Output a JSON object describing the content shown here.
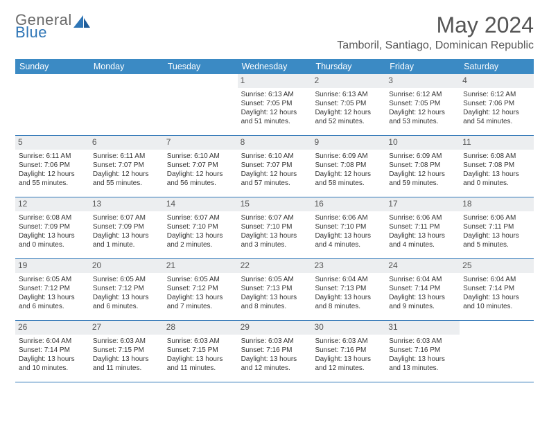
{
  "logo": {
    "part1": "General",
    "part2": "Blue"
  },
  "title": "May 2024",
  "location": "Tamboril, Santiago, Dominican Republic",
  "colors": {
    "header_bg": "#3b8ac4",
    "header_text": "#ffffff",
    "border": "#2e75b6",
    "daynum_bg": "#eceef0",
    "text": "#333333",
    "title_text": "#555555"
  },
  "weekdays": [
    "Sunday",
    "Monday",
    "Tuesday",
    "Wednesday",
    "Thursday",
    "Friday",
    "Saturday"
  ],
  "weeks": [
    [
      {
        "n": "",
        "sr": "",
        "ss": "",
        "dl": "",
        "empty": true
      },
      {
        "n": "",
        "sr": "",
        "ss": "",
        "dl": "",
        "empty": true
      },
      {
        "n": "",
        "sr": "",
        "ss": "",
        "dl": "",
        "empty": true
      },
      {
        "n": "1",
        "sr": "Sunrise: 6:13 AM",
        "ss": "Sunset: 7:05 PM",
        "dl": "Daylight: 12 hours and 51 minutes."
      },
      {
        "n": "2",
        "sr": "Sunrise: 6:13 AM",
        "ss": "Sunset: 7:05 PM",
        "dl": "Daylight: 12 hours and 52 minutes."
      },
      {
        "n": "3",
        "sr": "Sunrise: 6:12 AM",
        "ss": "Sunset: 7:05 PM",
        "dl": "Daylight: 12 hours and 53 minutes."
      },
      {
        "n": "4",
        "sr": "Sunrise: 6:12 AM",
        "ss": "Sunset: 7:06 PM",
        "dl": "Daylight: 12 hours and 54 minutes."
      }
    ],
    [
      {
        "n": "5",
        "sr": "Sunrise: 6:11 AM",
        "ss": "Sunset: 7:06 PM",
        "dl": "Daylight: 12 hours and 55 minutes."
      },
      {
        "n": "6",
        "sr": "Sunrise: 6:11 AM",
        "ss": "Sunset: 7:07 PM",
        "dl": "Daylight: 12 hours and 55 minutes."
      },
      {
        "n": "7",
        "sr": "Sunrise: 6:10 AM",
        "ss": "Sunset: 7:07 PM",
        "dl": "Daylight: 12 hours and 56 minutes."
      },
      {
        "n": "8",
        "sr": "Sunrise: 6:10 AM",
        "ss": "Sunset: 7:07 PM",
        "dl": "Daylight: 12 hours and 57 minutes."
      },
      {
        "n": "9",
        "sr": "Sunrise: 6:09 AM",
        "ss": "Sunset: 7:08 PM",
        "dl": "Daylight: 12 hours and 58 minutes."
      },
      {
        "n": "10",
        "sr": "Sunrise: 6:09 AM",
        "ss": "Sunset: 7:08 PM",
        "dl": "Daylight: 12 hours and 59 minutes."
      },
      {
        "n": "11",
        "sr": "Sunrise: 6:08 AM",
        "ss": "Sunset: 7:08 PM",
        "dl": "Daylight: 13 hours and 0 minutes."
      }
    ],
    [
      {
        "n": "12",
        "sr": "Sunrise: 6:08 AM",
        "ss": "Sunset: 7:09 PM",
        "dl": "Daylight: 13 hours and 0 minutes."
      },
      {
        "n": "13",
        "sr": "Sunrise: 6:07 AM",
        "ss": "Sunset: 7:09 PM",
        "dl": "Daylight: 13 hours and 1 minute."
      },
      {
        "n": "14",
        "sr": "Sunrise: 6:07 AM",
        "ss": "Sunset: 7:10 PM",
        "dl": "Daylight: 13 hours and 2 minutes."
      },
      {
        "n": "15",
        "sr": "Sunrise: 6:07 AM",
        "ss": "Sunset: 7:10 PM",
        "dl": "Daylight: 13 hours and 3 minutes."
      },
      {
        "n": "16",
        "sr": "Sunrise: 6:06 AM",
        "ss": "Sunset: 7:10 PM",
        "dl": "Daylight: 13 hours and 4 minutes."
      },
      {
        "n": "17",
        "sr": "Sunrise: 6:06 AM",
        "ss": "Sunset: 7:11 PM",
        "dl": "Daylight: 13 hours and 4 minutes."
      },
      {
        "n": "18",
        "sr": "Sunrise: 6:06 AM",
        "ss": "Sunset: 7:11 PM",
        "dl": "Daylight: 13 hours and 5 minutes."
      }
    ],
    [
      {
        "n": "19",
        "sr": "Sunrise: 6:05 AM",
        "ss": "Sunset: 7:12 PM",
        "dl": "Daylight: 13 hours and 6 minutes."
      },
      {
        "n": "20",
        "sr": "Sunrise: 6:05 AM",
        "ss": "Sunset: 7:12 PM",
        "dl": "Daylight: 13 hours and 6 minutes."
      },
      {
        "n": "21",
        "sr": "Sunrise: 6:05 AM",
        "ss": "Sunset: 7:12 PM",
        "dl": "Daylight: 13 hours and 7 minutes."
      },
      {
        "n": "22",
        "sr": "Sunrise: 6:05 AM",
        "ss": "Sunset: 7:13 PM",
        "dl": "Daylight: 13 hours and 8 minutes."
      },
      {
        "n": "23",
        "sr": "Sunrise: 6:04 AM",
        "ss": "Sunset: 7:13 PM",
        "dl": "Daylight: 13 hours and 8 minutes."
      },
      {
        "n": "24",
        "sr": "Sunrise: 6:04 AM",
        "ss": "Sunset: 7:14 PM",
        "dl": "Daylight: 13 hours and 9 minutes."
      },
      {
        "n": "25",
        "sr": "Sunrise: 6:04 AM",
        "ss": "Sunset: 7:14 PM",
        "dl": "Daylight: 13 hours and 10 minutes."
      }
    ],
    [
      {
        "n": "26",
        "sr": "Sunrise: 6:04 AM",
        "ss": "Sunset: 7:14 PM",
        "dl": "Daylight: 13 hours and 10 minutes."
      },
      {
        "n": "27",
        "sr": "Sunrise: 6:03 AM",
        "ss": "Sunset: 7:15 PM",
        "dl": "Daylight: 13 hours and 11 minutes."
      },
      {
        "n": "28",
        "sr": "Sunrise: 6:03 AM",
        "ss": "Sunset: 7:15 PM",
        "dl": "Daylight: 13 hours and 11 minutes."
      },
      {
        "n": "29",
        "sr": "Sunrise: 6:03 AM",
        "ss": "Sunset: 7:16 PM",
        "dl": "Daylight: 13 hours and 12 minutes."
      },
      {
        "n": "30",
        "sr": "Sunrise: 6:03 AM",
        "ss": "Sunset: 7:16 PM",
        "dl": "Daylight: 13 hours and 12 minutes."
      },
      {
        "n": "31",
        "sr": "Sunrise: 6:03 AM",
        "ss": "Sunset: 7:16 PM",
        "dl": "Daylight: 13 hours and 13 minutes."
      },
      {
        "n": "",
        "sr": "",
        "ss": "",
        "dl": "",
        "empty": true
      }
    ]
  ]
}
